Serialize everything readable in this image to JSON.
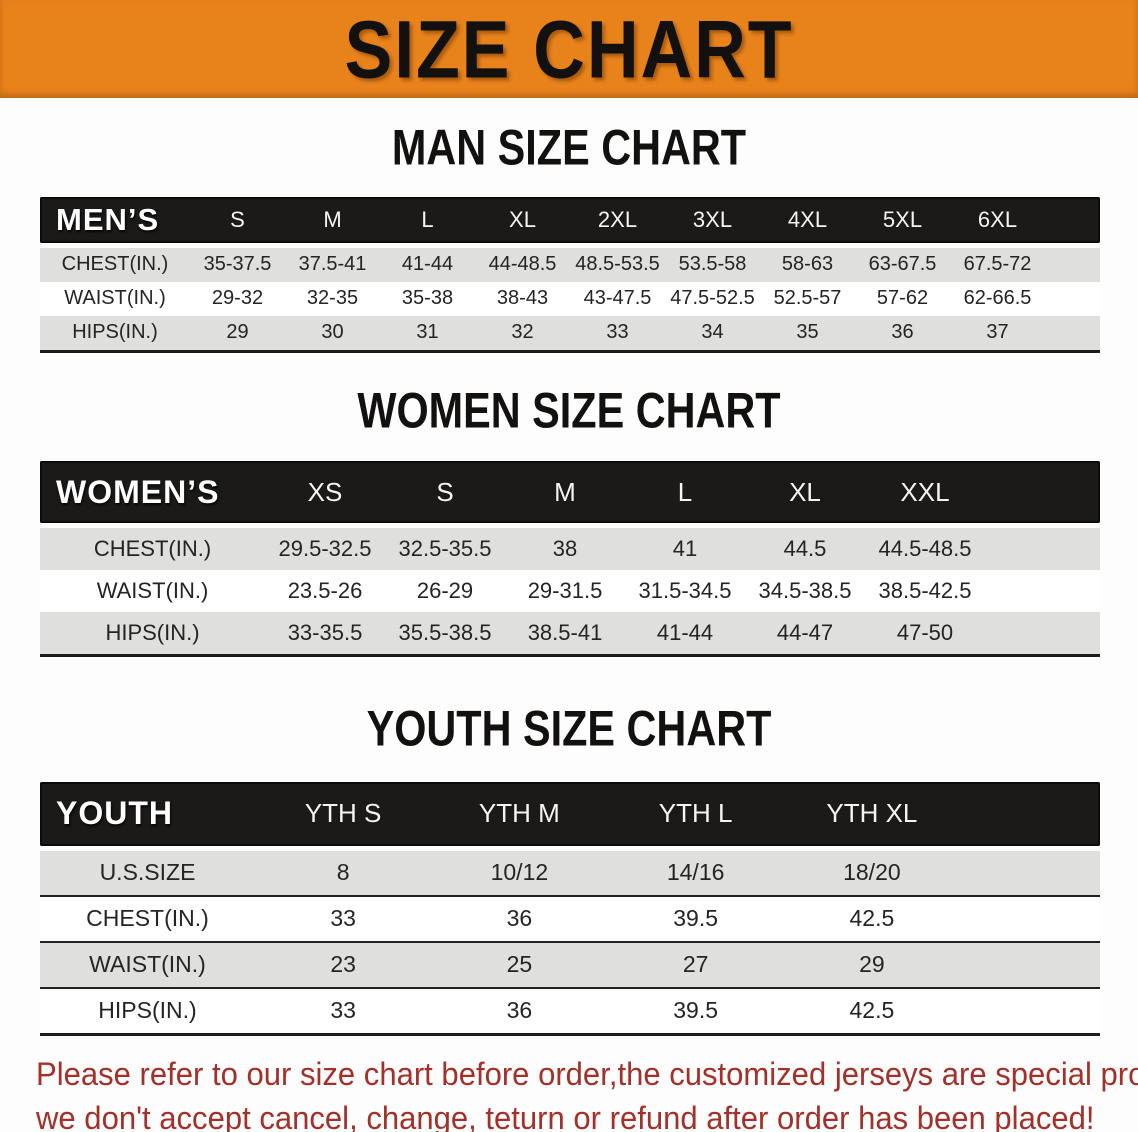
{
  "banner": {
    "title": "SIZE CHART"
  },
  "colors": {
    "banner_bg": "#E8821B",
    "header_bar": "#1B1A19",
    "row_stripe": "#DFDFDD",
    "footer_text": "#A4302A"
  },
  "sections": {
    "men": {
      "title": "MAN SIZE CHART",
      "header_label": "MEN’S",
      "columns": [
        "S",
        "M",
        "L",
        "XL",
        "2XL",
        "3XL",
        "4XL",
        "5XL",
        "6XL"
      ],
      "rows": [
        {
          "label": "CHEST(IN.)",
          "values": [
            "35-37.5",
            "37.5-41",
            "41-44",
            "44-48.5",
            "48.5-53.5",
            "53.5-58",
            "58-63",
            "63-67.5",
            "67.5-72"
          ]
        },
        {
          "label": "WAIST(IN.)",
          "values": [
            "29-32",
            "32-35",
            "35-38",
            "38-43",
            "43-47.5",
            "47.5-52.5",
            "52.5-57",
            "57-62",
            "62-66.5"
          ]
        },
        {
          "label": "HIPS(IN.)",
          "values": [
            "29",
            "30",
            "31",
            "32",
            "33",
            "34",
            "35",
            "36",
            "37"
          ]
        }
      ]
    },
    "women": {
      "title": "WOMEN SIZE CHART",
      "header_label": "WOMEN’S",
      "columns": [
        "XS",
        "S",
        "M",
        "L",
        "XL",
        "XXL"
      ],
      "rows": [
        {
          "label": "CHEST(IN.)",
          "values": [
            "29.5-32.5",
            "32.5-35.5",
            "38",
            "41",
            "44.5",
            "44.5-48.5"
          ]
        },
        {
          "label": "WAIST(IN.)",
          "values": [
            "23.5-26",
            "26-29",
            "29-31.5",
            "31.5-34.5",
            "34.5-38.5",
            "38.5-42.5"
          ]
        },
        {
          "label": "HIPS(IN.)",
          "values": [
            "33-35.5",
            "35.5-38.5",
            "38.5-41",
            "41-44",
            "44-47",
            "47-50"
          ]
        }
      ]
    },
    "youth": {
      "title": "YOUTH SIZE CHART",
      "header_label": "YOUTH",
      "columns": [
        "YTH S",
        "YTH M",
        "YTH L",
        "YTH XL"
      ],
      "rows": [
        {
          "label": "U.S.SIZE",
          "values": [
            "8",
            "10/12",
            "14/16",
            "18/20"
          ]
        },
        {
          "label": "CHEST(IN.)",
          "values": [
            "33",
            "36",
            "39.5",
            "42.5"
          ]
        },
        {
          "label": "WAIST(IN.)",
          "values": [
            "23",
            "25",
            "27",
            "29"
          ]
        },
        {
          "label": "HIPS(IN.)",
          "values": [
            "33",
            "36",
            "39.5",
            "42.5"
          ]
        }
      ]
    }
  },
  "footer": {
    "line1": "Please refer to our size chart before order,the customized jerseys are special products,",
    "line2": "we don't accept cancel, change, teturn or refund after order has been placed!"
  }
}
